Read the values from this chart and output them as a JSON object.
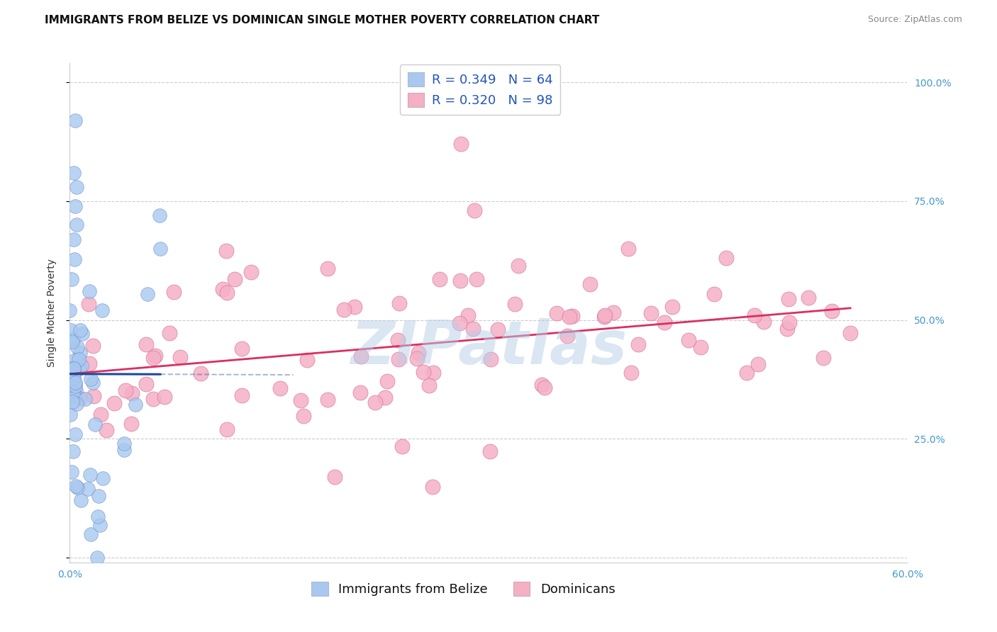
{
  "title": "IMMIGRANTS FROM BELIZE VS DOMINICAN SINGLE MOTHER POVERTY CORRELATION CHART",
  "source": "Source: ZipAtlas.com",
  "xlabel_belize": "Immigrants from Belize",
  "xlabel_dominican": "Dominicans",
  "ylabel": "Single Mother Poverty",
  "xlim": [
    0.0,
    0.6
  ],
  "ylim": [
    -0.01,
    1.04
  ],
  "ytick_vals": [
    0.0,
    0.25,
    0.5,
    0.75,
    1.0
  ],
  "xtick_vals": [
    0.0,
    0.1,
    0.2,
    0.3,
    0.4,
    0.5,
    0.6
  ],
  "legend_r_belize": "R = 0.349",
  "legend_n_belize": "N = 64",
  "legend_r_dominican": "R = 0.320",
  "legend_n_dominican": "N = 98",
  "belize_color": "#a8c8f0",
  "dominican_color": "#f5b0c4",
  "belize_line_color": "#1a4a9a",
  "dominican_line_color": "#d93060",
  "belize_marker_edge": "#7090c8",
  "dominican_marker_edge": "#d070a0",
  "r_belize": 0.349,
  "r_dominican": 0.32,
  "n_belize": 64,
  "n_dominican": 98,
  "watermark": "ZIPatlas",
  "background_color": "#ffffff",
  "grid_color": "#cccccc",
  "title_fontsize": 11,
  "axis_label_fontsize": 10,
  "tick_fontsize": 10,
  "legend_fontsize": 13,
  "source_fontsize": 9
}
